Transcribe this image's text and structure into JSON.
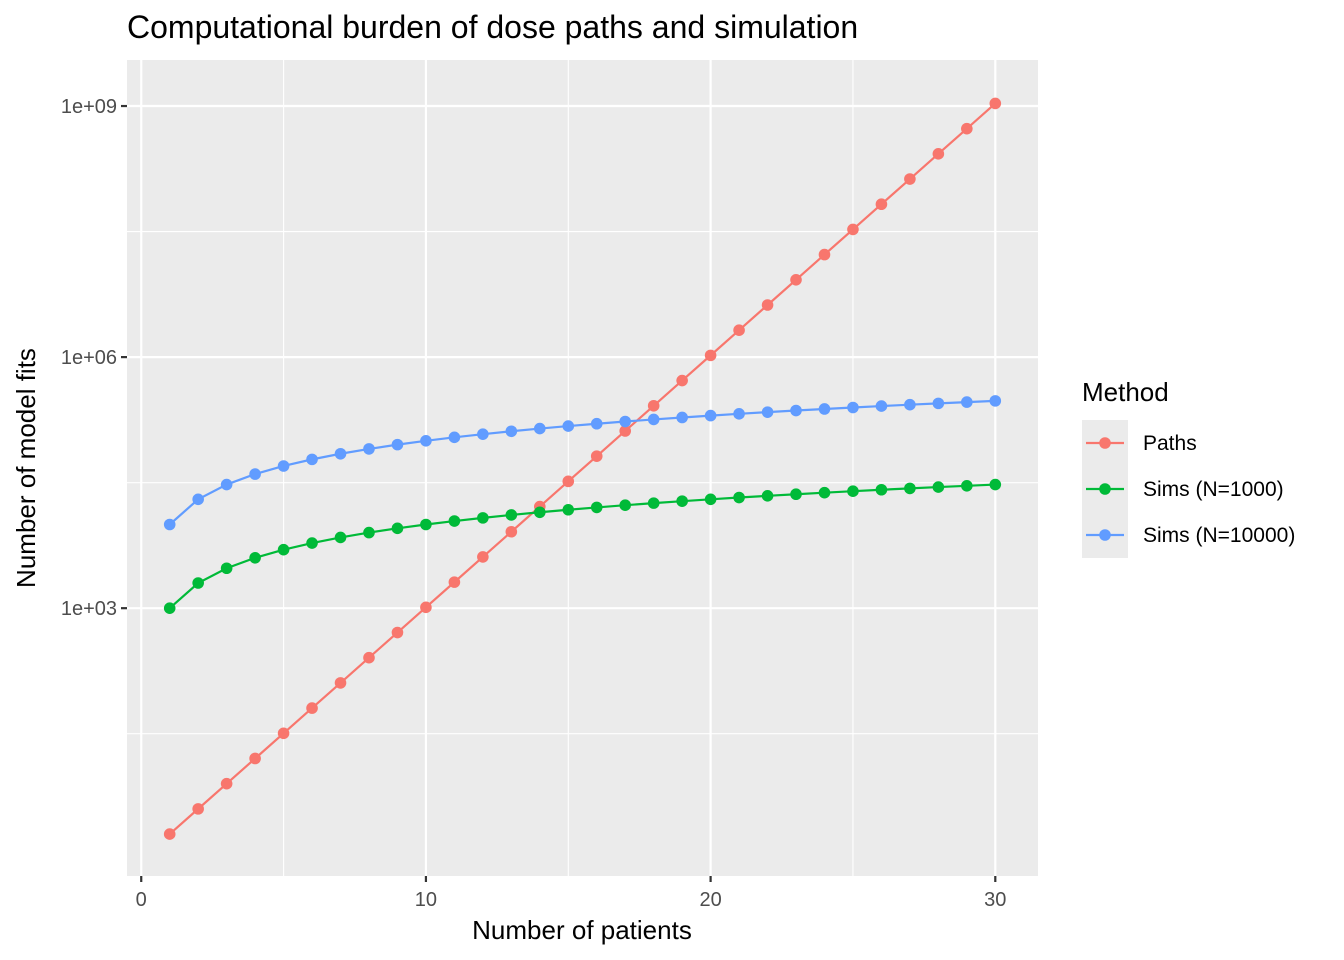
{
  "chart_data": {
    "type": "line",
    "title": "Computational burden of dose paths and simulation",
    "xlabel": "Number of patients",
    "ylabel": "Number of model fits",
    "xlim": [
      -0.5,
      31.5
    ],
    "ylim_log10": [
      -0.2,
      9.55
    ],
    "y_scale": "log10",
    "x_ticks": [
      0,
      10,
      20,
      30
    ],
    "y_ticks": [
      1000,
      1000000,
      1000000000
    ],
    "y_tick_labels": [
      "1e+03",
      "1e+06",
      "1e+09"
    ],
    "grid": true,
    "legend": {
      "title": "Method",
      "position": "right"
    },
    "x": [
      1,
      2,
      3,
      4,
      5,
      6,
      7,
      8,
      9,
      10,
      11,
      12,
      13,
      14,
      15,
      16,
      17,
      18,
      19,
      20,
      21,
      22,
      23,
      24,
      25,
      26,
      27,
      28,
      29,
      30
    ],
    "series": [
      {
        "name": "Paths",
        "color": "#F8766D",
        "values": [
          2,
          4,
          8,
          16,
          32,
          64,
          128,
          256,
          512,
          1024,
          2048,
          4096,
          8192,
          16384,
          32768,
          65536,
          131072,
          262144,
          524288,
          1048576,
          2097152,
          4194304,
          8388608,
          16777216,
          33554432,
          67108864,
          134217728,
          268435456,
          536870912,
          1073741824
        ]
      },
      {
        "name": "Sims (N=1000)",
        "color": "#00BA38",
        "values": [
          1000,
          2000,
          3000,
          4000,
          5000,
          6000,
          7000,
          8000,
          9000,
          10000,
          11000,
          12000,
          13000,
          14000,
          15000,
          16000,
          17000,
          18000,
          19000,
          20000,
          21000,
          22000,
          23000,
          24000,
          25000,
          26000,
          27000,
          28000,
          29000,
          30000
        ]
      },
      {
        "name": "Sims (N=10000)",
        "color": "#619CFF",
        "values": [
          10000,
          20000,
          30000,
          40000,
          50000,
          60000,
          70000,
          80000,
          90000,
          100000,
          110000,
          120000,
          130000,
          140000,
          150000,
          160000,
          170000,
          180000,
          190000,
          200000,
          210000,
          220000,
          230000,
          240000,
          250000,
          260000,
          270000,
          280000,
          290000,
          300000
        ]
      }
    ]
  }
}
